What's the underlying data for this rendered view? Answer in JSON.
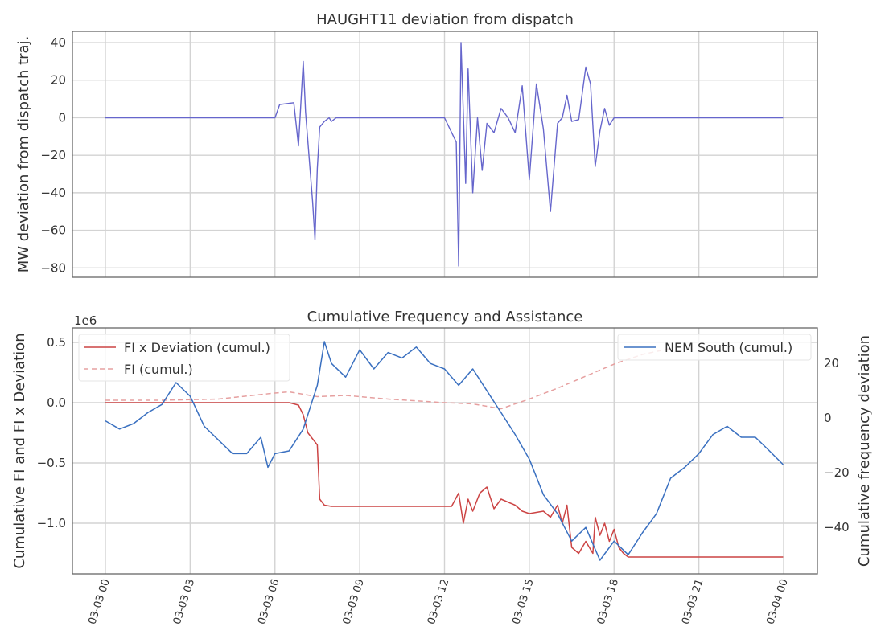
{
  "colors": {
    "deviation": "#6666cc",
    "fi_x_deviation": "#cc4444",
    "fi": "#e6a0a0",
    "nem_south": "#3a70c0"
  },
  "chart_data": [
    {
      "type": "line",
      "title": "HAUGHT11 deviation from dispatch",
      "xlabel": "",
      "ylabel": "MW deviation from dispatch traj.",
      "ylim": [
        -85,
        46
      ],
      "yticks": [
        40,
        20,
        0,
        -20,
        -40,
        -60,
        -80
      ],
      "grid": true,
      "series": [
        {
          "name": "",
          "x": [
            "03-03 00:00",
            "03-03 06:00",
            "03-03 06:10",
            "03-03 06:40",
            "03-03 06:50",
            "03-03 07:00",
            "03-03 07:05",
            "03-03 07:20",
            "03-03 07:25",
            "03-03 07:30",
            "03-03 07:35",
            "03-03 07:45",
            "03-03 07:55",
            "03-03 08:00",
            "03-03 08:10",
            "03-03 08:30",
            "03-03 09:00",
            "03-03 12:00",
            "03-03 12:25",
            "03-03 12:30",
            "03-03 12:35",
            "03-03 12:45",
            "03-03 12:50",
            "03-03 13:00",
            "03-03 13:10",
            "03-03 13:20",
            "03-03 13:30",
            "03-03 13:45",
            "03-03 14:00",
            "03-03 14:15",
            "03-03 14:30",
            "03-03 14:45",
            "03-03 15:00",
            "03-03 15:15",
            "03-03 15:30",
            "03-03 15:45",
            "03-03 16:00",
            "03-03 16:10",
            "03-03 16:20",
            "03-03 16:30",
            "03-03 16:45",
            "03-03 17:00",
            "03-03 17:10",
            "03-03 17:20",
            "03-03 17:30",
            "03-03 17:40",
            "03-03 17:50",
            "03-03 18:00",
            "03-03 18:15",
            "03-03 18:30",
            "03-03 18:45",
            "03-03 19:00",
            "03-03 21:00",
            "03-03 23:59"
          ],
          "values": [
            0,
            0,
            7,
            8,
            -15,
            30,
            3,
            -45,
            -65,
            -27,
            -5,
            -2,
            0,
            -2,
            0,
            0,
            0,
            0,
            -13,
            -79,
            40,
            -35,
            26,
            -40,
            0,
            -28,
            -3,
            -8,
            5,
            0,
            -8,
            17,
            -33,
            18,
            -6,
            -50,
            -3,
            0,
            12,
            -2,
            -1,
            27,
            18,
            -26,
            -7,
            5,
            -4,
            0,
            0,
            0,
            0,
            0,
            0,
            0
          ]
        }
      ]
    },
    {
      "type": "line",
      "title": "Cumulative Frequency and Assistance",
      "xlabel": "",
      "ylabel": "Cumulative FI and FI x Deviation",
      "y_offset_label": "1e6",
      "ylim": [
        -1.42,
        0.62
      ],
      "yticks": [
        0.5,
        0.0,
        -0.5,
        -1.0
      ],
      "y2label": "Cumulative frequency deviation",
      "y2lim": [
        -57,
        33
      ],
      "y2ticks": [
        20,
        0,
        -20,
        -40
      ],
      "xticks": [
        "03-03 00",
        "03-03 03",
        "03-03 06",
        "03-03 09",
        "03-03 12",
        "03-03 15",
        "03-03 18",
        "03-03 21",
        "03-04 00"
      ],
      "grid": true,
      "legend": [
        "top-left",
        "top-right"
      ],
      "series": [
        {
          "name": "FI x Deviation (cumul.)",
          "axis": "left",
          "x": [
            "03-03 00:00",
            "03-03 06:30",
            "03-03 06:50",
            "03-03 07:00",
            "03-03 07:10",
            "03-03 07:30",
            "03-03 07:35",
            "03-03 07:45",
            "03-03 08:00",
            "03-03 12:15",
            "03-03 12:30",
            "03-03 12:40",
            "03-03 12:50",
            "03-03 13:00",
            "03-03 13:15",
            "03-03 13:30",
            "03-03 13:45",
            "03-03 14:00",
            "03-03 14:30",
            "03-03 14:45",
            "03-03 15:00",
            "03-03 15:30",
            "03-03 15:45",
            "03-03 16:00",
            "03-03 16:10",
            "03-03 16:20",
            "03-03 16:30",
            "03-03 16:45",
            "03-03 17:00",
            "03-03 17:15",
            "03-03 17:20",
            "03-03 17:30",
            "03-03 17:40",
            "03-03 17:50",
            "03-03 18:00",
            "03-03 18:10",
            "03-03 18:20",
            "03-03 18:30",
            "03-03 18:45",
            "03-03 19:00",
            "03-03 23:59"
          ],
          "values": [
            0.0,
            0.0,
            -0.02,
            -0.1,
            -0.25,
            -0.35,
            -0.8,
            -0.85,
            -0.86,
            -0.86,
            -0.75,
            -1.0,
            -0.8,
            -0.9,
            -0.75,
            -0.7,
            -0.88,
            -0.8,
            -0.85,
            -0.9,
            -0.92,
            -0.9,
            -0.95,
            -0.85,
            -1.0,
            -0.85,
            -1.2,
            -1.25,
            -1.15,
            -1.25,
            -0.95,
            -1.1,
            -1.0,
            -1.15,
            -1.05,
            -1.2,
            -1.25,
            -1.28,
            -1.28,
            -1.28,
            -1.28
          ]
        },
        {
          "name": "FI (cumul.)",
          "axis": "left",
          "style": "dashed",
          "x": [
            "03-03 00:00",
            "03-03 02:00",
            "03-03 04:00",
            "03-03 06:00",
            "03-03 06:30",
            "03-03 07:30",
            "03-03 08:30",
            "03-03 10:00",
            "03-03 12:00",
            "03-03 13:00",
            "03-03 14:00",
            "03-03 15:00",
            "03-03 16:00",
            "03-03 17:00",
            "03-03 18:00",
            "03-03 19:00",
            "03-03 20:00"
          ],
          "values": [
            0.02,
            0.02,
            0.03,
            0.08,
            0.09,
            0.05,
            0.06,
            0.03,
            0.0,
            -0.01,
            -0.05,
            0.03,
            0.12,
            0.22,
            0.32,
            0.4,
            0.45
          ]
        },
        {
          "name": "NEM South (cumul.)",
          "axis": "right",
          "x": [
            "03-03 00:00",
            "03-03 00:30",
            "03-03 01:00",
            "03-03 01:30",
            "03-03 02:00",
            "03-03 02:30",
            "03-03 03:00",
            "03-03 03:30",
            "03-03 04:00",
            "03-03 04:30",
            "03-03 05:00",
            "03-03 05:30",
            "03-03 05:45",
            "03-03 06:00",
            "03-03 06:30",
            "03-03 07:00",
            "03-03 07:30",
            "03-03 07:45",
            "03-03 08:00",
            "03-03 08:30",
            "03-03 09:00",
            "03-03 09:30",
            "03-03 10:00",
            "03-03 10:30",
            "03-03 11:00",
            "03-03 11:30",
            "03-03 12:00",
            "03-03 12:30",
            "03-03 13:00",
            "03-03 13:30",
            "03-03 14:00",
            "03-03 14:30",
            "03-03 15:00",
            "03-03 15:30",
            "03-03 16:00",
            "03-03 16:30",
            "03-03 17:00",
            "03-03 17:30",
            "03-03 18:00",
            "03-03 18:30",
            "03-03 19:00",
            "03-03 19:30",
            "03-03 20:00",
            "03-03 20:30",
            "03-03 21:00",
            "03-03 21:30",
            "03-03 22:00",
            "03-03 22:30",
            "03-03 23:00",
            "03-03 23:30",
            "03-03 23:59"
          ],
          "values": [
            -1,
            -4,
            -2,
            2,
            5,
            13,
            8,
            -3,
            -8,
            -13,
            -13,
            -7,
            -18,
            -13,
            -12,
            -4,
            12,
            28,
            20,
            15,
            25,
            18,
            24,
            22,
            26,
            20,
            18,
            12,
            18,
            10,
            2,
            -6,
            -15,
            -28,
            -35,
            -45,
            -40,
            -52,
            -45,
            -50,
            -42,
            -35,
            -22,
            -18,
            -13,
            -6,
            -3,
            -7,
            -7,
            -12,
            -17
          ]
        }
      ]
    }
  ]
}
